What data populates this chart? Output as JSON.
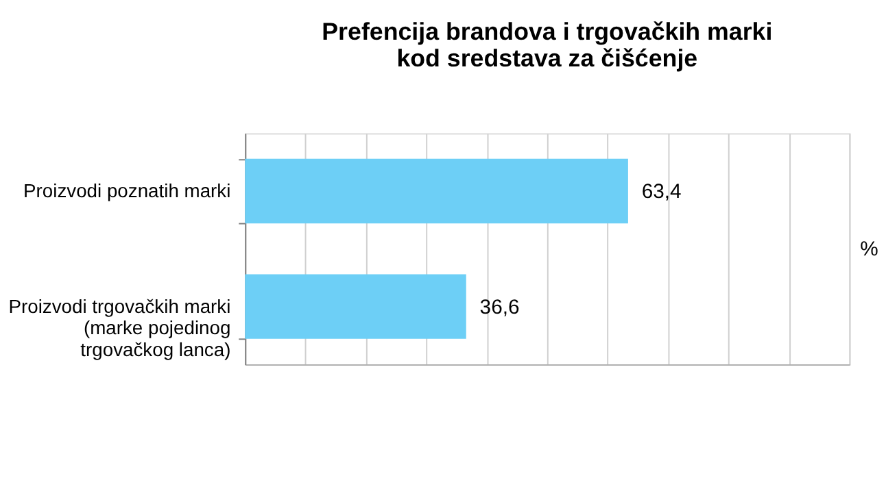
{
  "chart_data": {
    "type": "bar",
    "orientation": "horizontal",
    "title": "Prefencija brandova i trgovačkih marki\nkod sredstava za čišćenje",
    "xlabel": "%",
    "categories": [
      "Proizvodi poznatih marki",
      "Proizvodi trgovačkih marki\n(marke pojedinog\ntrgovačkog lanca)"
    ],
    "values": [
      63.4,
      36.6
    ],
    "color": "#6dcff6",
    "value_labels": [
      "63,4",
      "36,6"
    ],
    "xlim": [
      0,
      100
    ],
    "xticks": [
      0,
      10,
      20,
      30,
      40,
      50,
      60,
      70,
      80,
      90,
      100
    ],
    "grid": "x",
    "tick_labels": "y"
  }
}
